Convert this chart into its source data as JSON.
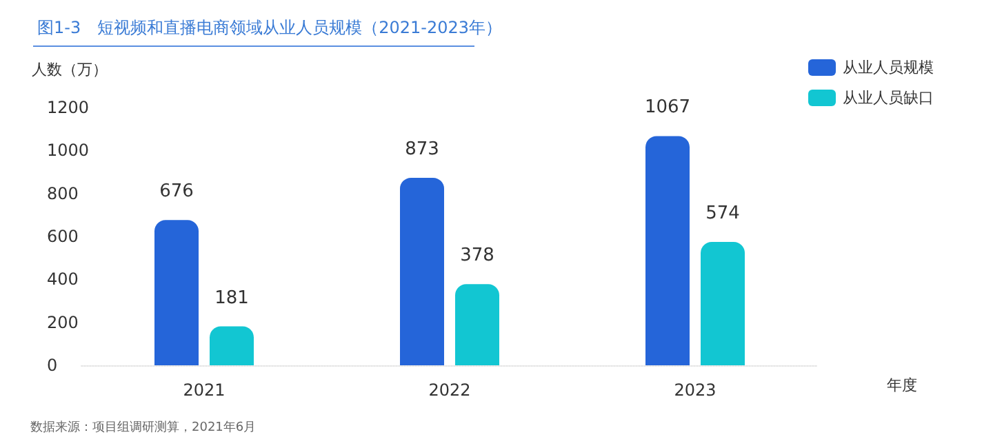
{
  "chart_data": {
    "type": "bar",
    "title": "图1-3　短视频和直播电商领域从业人员规模（2021-2023年）",
    "ylabel": "人数（万）",
    "xlabel": "年度",
    "categories": [
      "2021",
      "2022",
      "2023"
    ],
    "series": [
      {
        "name": "从业人员规模",
        "color": "#2565d9",
        "values": [
          676,
          873,
          1067
        ]
      },
      {
        "name": "从业人员缺口",
        "color": "#12c6d2",
        "values": [
          181,
          378,
          574
        ]
      }
    ],
    "ylim": [
      0,
      1200
    ],
    "yticks": [
      0,
      200,
      400,
      600,
      800,
      1000,
      1200
    ],
    "grid": false,
    "legend": "top right",
    "data_labels": true,
    "annotations": [
      "数据来源：项目组调研测算，2021年6月"
    ]
  }
}
